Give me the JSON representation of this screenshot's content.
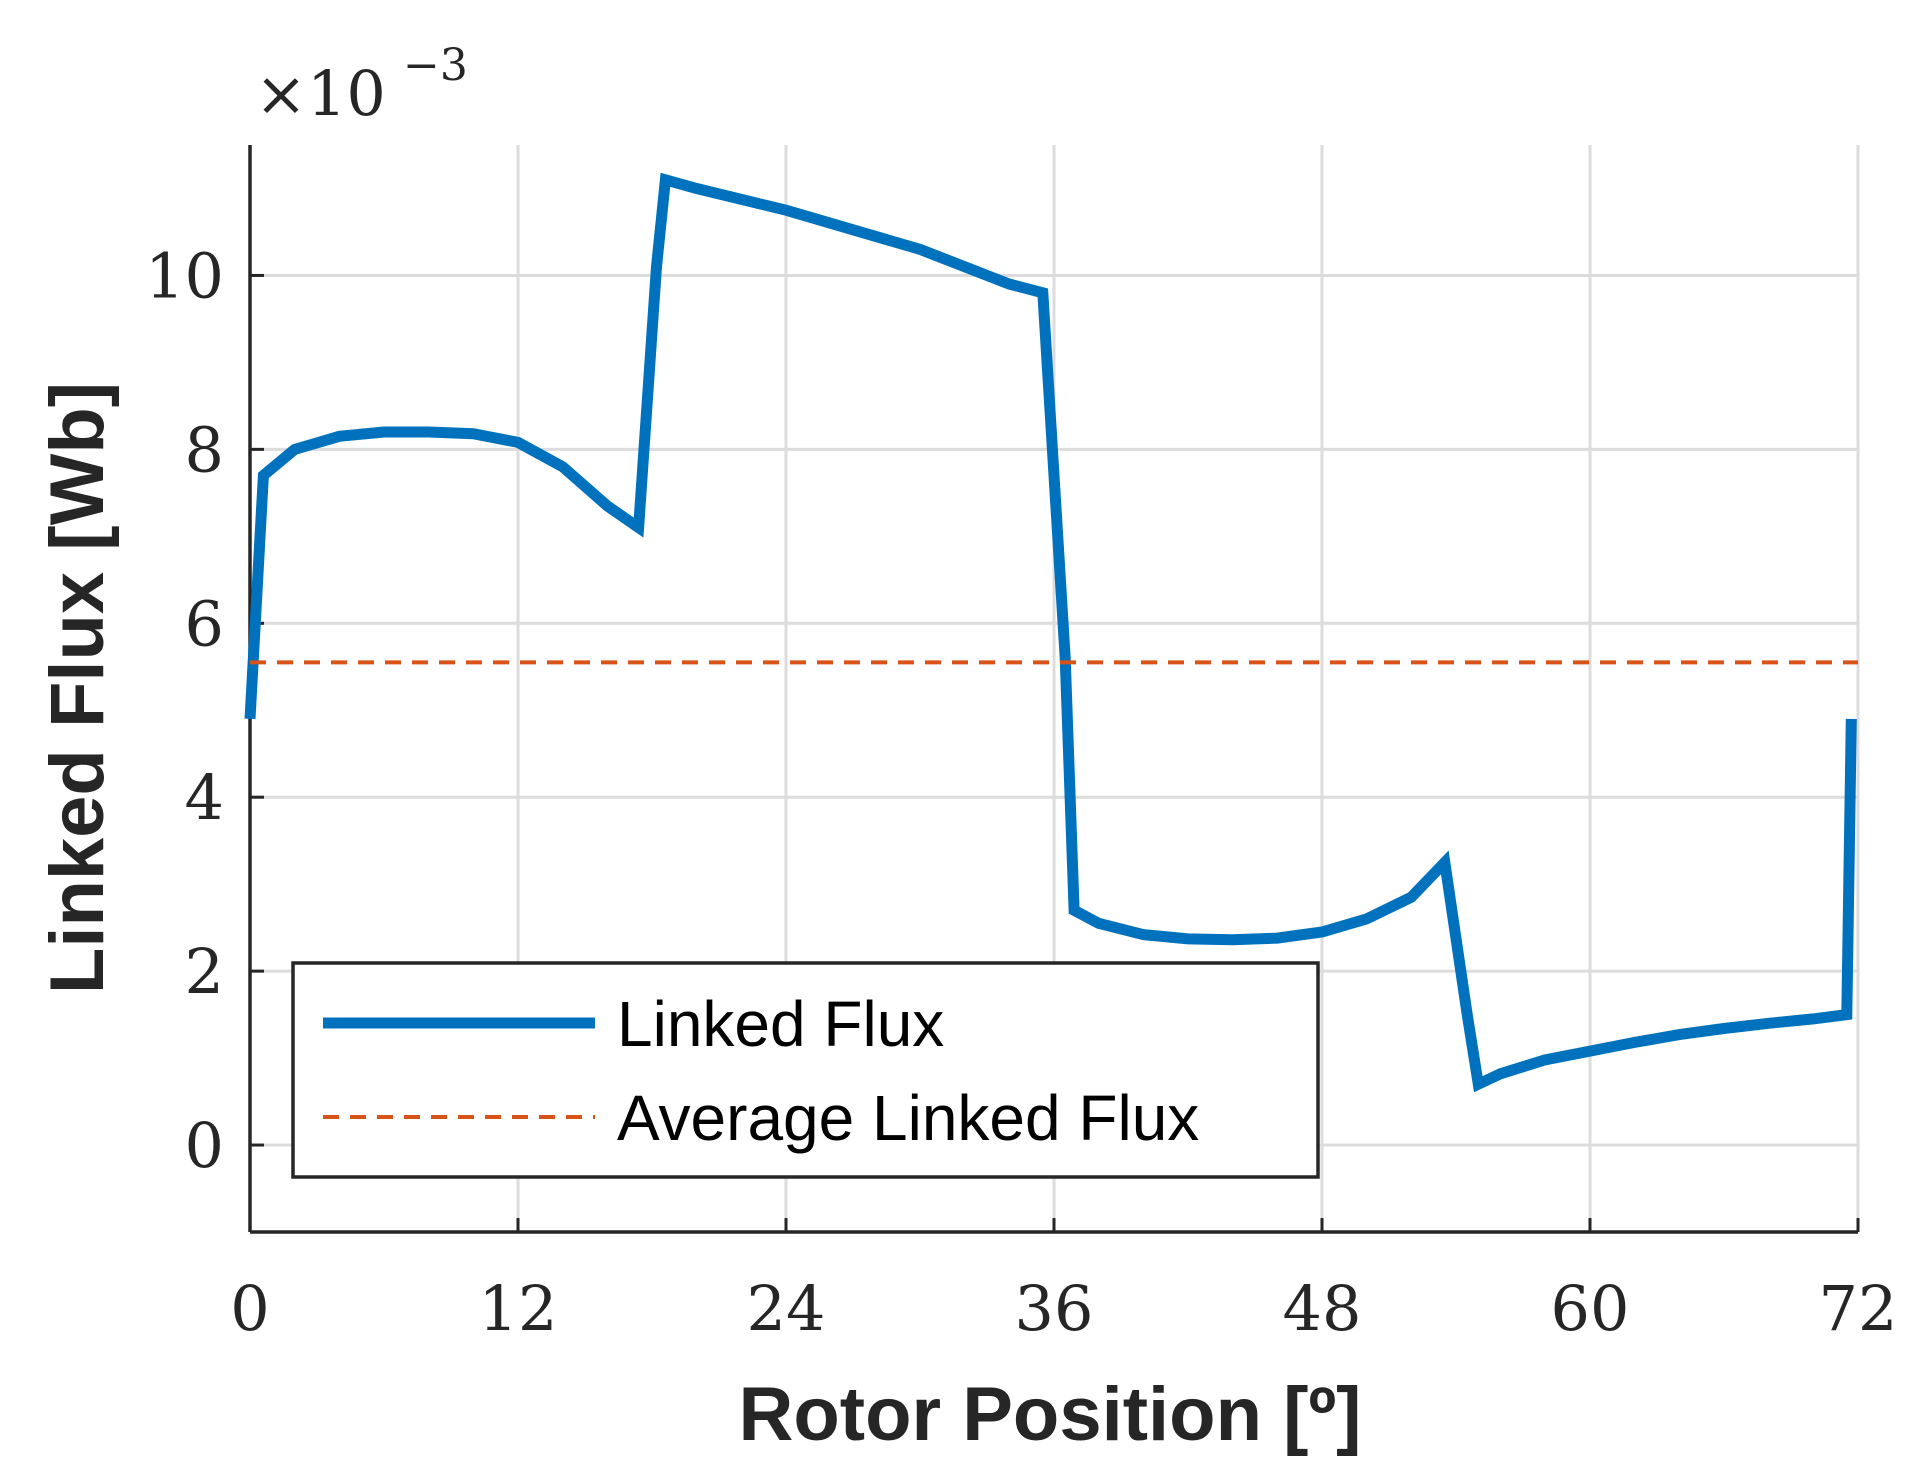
{
  "chart_data": {
    "type": "line",
    "xlabel": "Rotor Position [º]",
    "ylabel": "Linked Flux [Wb]",
    "y_multiplier": {
      "base": "×10",
      "exponent": "−3"
    },
    "xlim": [
      0,
      72
    ],
    "ylim": [
      -1,
      11.5
    ],
    "x_ticks": [
      0,
      12,
      24,
      36,
      48,
      60,
      72
    ],
    "y_ticks": [
      0,
      2,
      4,
      6,
      8,
      10
    ],
    "x_tick_labels": [
      "0",
      "12",
      "24",
      "36",
      "48",
      "60",
      "72"
    ],
    "y_tick_labels": [
      "0",
      "2",
      "4",
      "6",
      "8",
      "10"
    ],
    "grid": true,
    "legend_position": "bottom-left",
    "colors": {
      "linked": "#0072BD",
      "average": "#D95319",
      "grid": "#dcdcdc",
      "axis": "#262626"
    },
    "series": [
      {
        "name": "Linked Flux",
        "style": "solid",
        "x": [
          0,
          0.6,
          2,
          4,
          6,
          8,
          10,
          12,
          14,
          16,
          17.4,
          18.2,
          18.6,
          20,
          24,
          28,
          30,
          32,
          34,
          35.5,
          36.5,
          36.9,
          38,
          40,
          42,
          44,
          46,
          48,
          50,
          52,
          53.5,
          54.5,
          55,
          56,
          58,
          60,
          62,
          64,
          66,
          68,
          70,
          71.5,
          71.7
        ],
        "values": [
          4.9,
          7.7,
          8.0,
          8.15,
          8.2,
          8.2,
          8.18,
          8.08,
          7.8,
          7.35,
          7.1,
          10.1,
          11.1,
          11.0,
          10.75,
          10.45,
          10.3,
          10.1,
          9.9,
          9.8,
          5.6,
          2.7,
          2.55,
          2.42,
          2.37,
          2.36,
          2.38,
          2.45,
          2.6,
          2.85,
          3.25,
          1.5,
          0.7,
          0.82,
          0.98,
          1.08,
          1.18,
          1.27,
          1.34,
          1.4,
          1.45,
          1.5,
          4.9
        ]
      },
      {
        "name": "Average Linked Flux",
        "style": "dashed",
        "x": [
          0,
          72
        ],
        "values": [
          5.55,
          5.55
        ]
      }
    ]
  }
}
